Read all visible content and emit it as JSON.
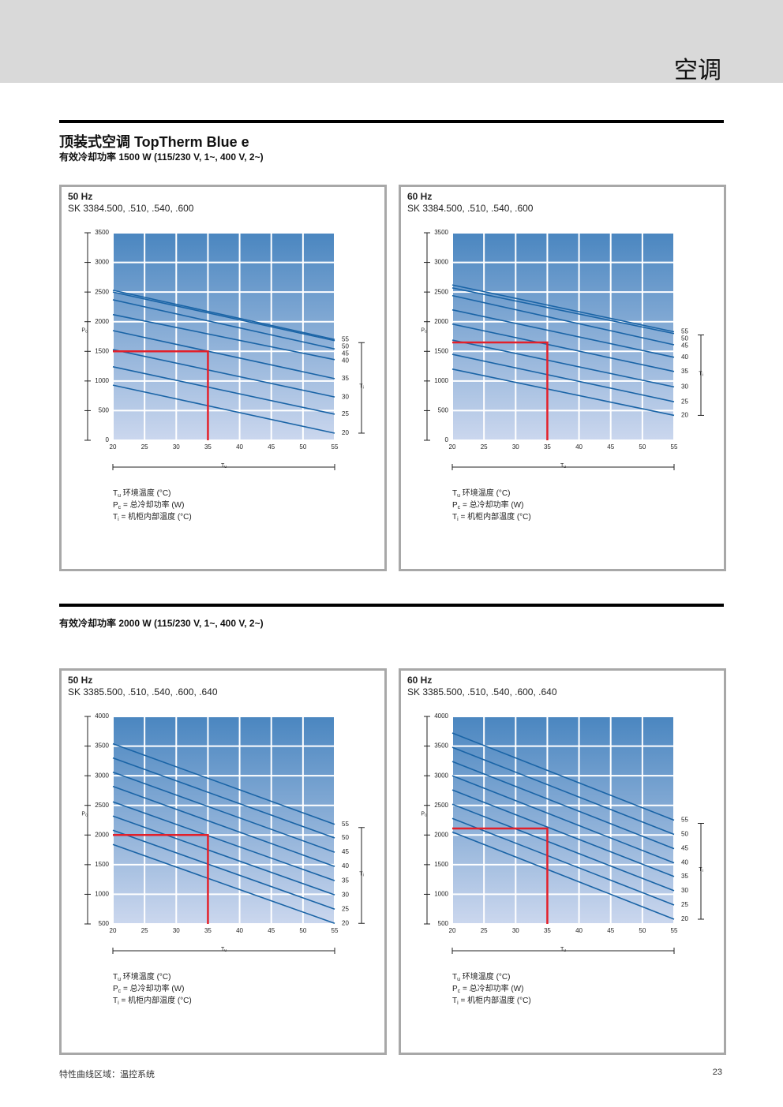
{
  "header": {
    "title": "空调"
  },
  "section_1": {
    "title": "顶装式空调 TopTherm Blue e",
    "subtitle": "有效冷却功率 1500 W (115/230 V, 1~, 400 V, 2~)"
  },
  "section_2": {
    "subtitle": "有效冷却功率 2000 W (115/230 V, 1~, 400 V, 2~)"
  },
  "footer": {
    "text": "特性曲线区域：温控系统",
    "page": "23"
  },
  "chart_data": [
    {
      "type": "line",
      "title": "50 Hz",
      "subtitle": "SK 3384.500, .510, .540, .600",
      "x": [
        20,
        55
      ],
      "xlim": [
        20,
        55
      ],
      "xticks": [
        20,
        25,
        30,
        35,
        40,
        45,
        50,
        55
      ],
      "ylim": [
        0,
        3500
      ],
      "yticks": [
        0,
        500,
        1000,
        1500,
        2000,
        2500,
        3000,
        3500
      ],
      "grid": true,
      "xlabel": {
        "symbol": "T",
        "sub": "u"
      },
      "ylabel": {
        "symbol": "P",
        "sub": "c"
      },
      "y2label": {
        "symbol": "T",
        "sub": "i"
      },
      "series": [
        {
          "name": "55",
          "color": "#1a64a6",
          "values": [
            2530,
            1700
          ]
        },
        {
          "name": "50",
          "color": "#1a64a6",
          "values": [
            2500,
            1680
          ]
        },
        {
          "name": "45",
          "color": "#1a64a6",
          "values": [
            2370,
            1540
          ]
        },
        {
          "name": "40",
          "color": "#1a64a6",
          "values": [
            2120,
            1360
          ]
        },
        {
          "name": "35",
          "color": "#1a64a6",
          "values": [
            1850,
            1040
          ]
        },
        {
          "name": "30",
          "color": "#1a64a6",
          "values": [
            1530,
            730
          ]
        },
        {
          "name": "25",
          "color": "#1a64a6",
          "values": [
            1240,
            440
          ]
        },
        {
          "name": "20",
          "color": "#1a64a6",
          "values": [
            930,
            120
          ]
        }
      ],
      "reference": {
        "x": 35,
        "y": 1500,
        "color": "#e3202a"
      },
      "legend": [
        {
          "symbol": "T",
          "sub": "u",
          "text": " 环境温度 (°C)"
        },
        {
          "symbol": "P",
          "sub": "c",
          "text": " = 总冷却功率 (W)"
        },
        {
          "symbol": "T",
          "sub": "i",
          "text": "  = 机柜内部温度 (°C)"
        }
      ]
    },
    {
      "type": "line",
      "title": "60 Hz",
      "subtitle": "SK 3384.500, .510, .540, .600",
      "x": [
        20,
        55
      ],
      "xlim": [
        20,
        55
      ],
      "xticks": [
        20,
        25,
        30,
        35,
        40,
        45,
        50,
        55
      ],
      "ylim": [
        0,
        3500
      ],
      "yticks": [
        0,
        500,
        1000,
        1500,
        2000,
        2500,
        3000,
        3500
      ],
      "grid": true,
      "xlabel": {
        "symbol": "T",
        "sub": "u"
      },
      "ylabel": {
        "symbol": "P",
        "sub": "c"
      },
      "y2label": {
        "symbol": "T",
        "sub": "i"
      },
      "series": [
        {
          "name": "55",
          "color": "#1a64a6",
          "values": [
            2620,
            1830
          ]
        },
        {
          "name": "50",
          "color": "#1a64a6",
          "values": [
            2570,
            1800
          ]
        },
        {
          "name": "45",
          "color": "#1a64a6",
          "values": [
            2440,
            1610
          ]
        },
        {
          "name": "40",
          "color": "#1a64a6",
          "values": [
            2200,
            1400
          ]
        },
        {
          "name": "35",
          "color": "#1a64a6",
          "values": [
            1960,
            1160
          ]
        },
        {
          "name": "30",
          "color": "#1a64a6",
          "values": [
            1690,
            900
          ]
        },
        {
          "name": "25",
          "color": "#1a64a6",
          "values": [
            1450,
            650
          ]
        },
        {
          "name": "20",
          "color": "#1a64a6",
          "values": [
            1200,
            420
          ]
        }
      ],
      "reference": {
        "x": 35,
        "y": 1650,
        "color": "#e3202a"
      },
      "legend": [
        {
          "symbol": "T",
          "sub": "u",
          "text": " 环境温度 (°C)"
        },
        {
          "symbol": "P",
          "sub": "c",
          "text": " = 总冷却功率 (W)"
        },
        {
          "symbol": "T",
          "sub": "i",
          "text": "  = 机柜内部温度 (°C)"
        }
      ]
    },
    {
      "type": "line",
      "title": "50 Hz",
      "subtitle": "SK 3385.500, .510, .540, .600, .640",
      "x": [
        20,
        55
      ],
      "xlim": [
        20,
        55
      ],
      "xticks": [
        20,
        25,
        30,
        35,
        40,
        45,
        50,
        55
      ],
      "ylim": [
        500,
        4000
      ],
      "yticks": [
        500,
        1000,
        1500,
        2000,
        2500,
        3000,
        3500,
        4000
      ],
      "grid": true,
      "xlabel": {
        "symbol": "T",
        "sub": "u"
      },
      "ylabel": {
        "symbol": "P",
        "sub": "c"
      },
      "y2label": {
        "symbol": "T",
        "sub": "i"
      },
      "series": [
        {
          "name": "55",
          "color": "#1a64a6",
          "values": [
            3540,
            2180
          ]
        },
        {
          "name": "50",
          "color": "#1a64a6",
          "values": [
            3300,
            1950
          ]
        },
        {
          "name": "45",
          "color": "#1a64a6",
          "values": [
            3060,
            1710
          ]
        },
        {
          "name": "40",
          "color": "#1a64a6",
          "values": [
            2820,
            1470
          ]
        },
        {
          "name": "35",
          "color": "#1a64a6",
          "values": [
            2560,
            1230
          ]
        },
        {
          "name": "30",
          "color": "#1a64a6",
          "values": [
            2320,
            990
          ]
        },
        {
          "name": "25",
          "color": "#1a64a6",
          "values": [
            2080,
            750
          ]
        },
        {
          "name": "20",
          "color": "#1a64a6",
          "values": [
            1840,
            510
          ]
        }
      ],
      "reference": {
        "x": 35,
        "y": 2000,
        "color": "#e3202a"
      },
      "legend": [
        {
          "symbol": "T",
          "sub": "u",
          "text": " 环境温度 (°C)"
        },
        {
          "symbol": "P",
          "sub": "c",
          "text": " = 总冷却功率 (W)"
        },
        {
          "symbol": "T",
          "sub": "i",
          "text": "  = 机柜内部温度 (°C)"
        }
      ]
    },
    {
      "type": "line",
      "title": "60 Hz",
      "subtitle": "SK 3385.500, .510, .540, .600, .640",
      "x": [
        20,
        55
      ],
      "xlim": [
        20,
        55
      ],
      "xticks": [
        20,
        25,
        30,
        35,
        40,
        45,
        50,
        55
      ],
      "ylim": [
        500,
        4000
      ],
      "yticks": [
        500,
        1000,
        1500,
        2000,
        2500,
        3000,
        3500,
        4000
      ],
      "grid": true,
      "xlabel": {
        "symbol": "T",
        "sub": "u"
      },
      "ylabel": {
        "symbol": "P",
        "sub": "c"
      },
      "y2label": {
        "symbol": "T",
        "sub": "i"
      },
      "series": [
        {
          "name": "55",
          "color": "#1a64a6",
          "values": [
            3720,
            2250
          ]
        },
        {
          "name": "50",
          "color": "#1a64a6",
          "values": [
            3480,
            2010
          ]
        },
        {
          "name": "45",
          "color": "#1a64a6",
          "values": [
            3240,
            1770
          ]
        },
        {
          "name": "40",
          "color": "#1a64a6",
          "values": [
            3000,
            1530
          ]
        },
        {
          "name": "35",
          "color": "#1a64a6",
          "values": [
            2760,
            1300
          ]
        },
        {
          "name": "30",
          "color": "#1a64a6",
          "values": [
            2520,
            1060
          ]
        },
        {
          "name": "25",
          "color": "#1a64a6",
          "values": [
            2280,
            820
          ]
        },
        {
          "name": "20",
          "color": "#1a64a6",
          "values": [
            2050,
            580
          ]
        }
      ],
      "reference": {
        "x": 35,
        "y": 2110,
        "color": "#e3202a"
      },
      "legend": [
        {
          "symbol": "T",
          "sub": "u",
          "text": " 环境温度 (°C)"
        },
        {
          "symbol": "P",
          "sub": "c",
          "text": " = 总冷却功率 (W)"
        },
        {
          "symbol": "T",
          "sub": "i",
          "text": "  = 机柜内部温度 (°C)"
        }
      ]
    }
  ]
}
